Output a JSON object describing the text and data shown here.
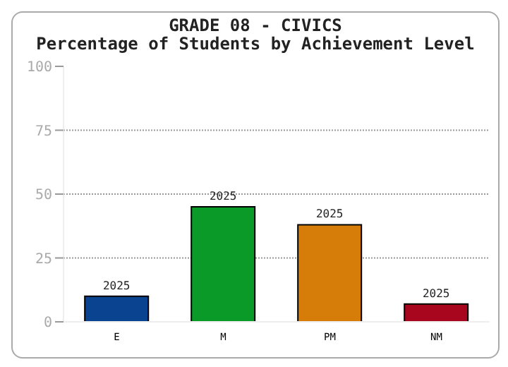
{
  "chart_data": {
    "type": "bar",
    "title": "GRADE 08 - CIVICS",
    "subtitle": "Percentage of Students by Achievement Level",
    "categories": [
      "E",
      "M",
      "PM",
      "NM"
    ],
    "series": [
      {
        "name": "2025",
        "colors": [
          "#0a4490",
          "#0a9a28",
          "#d67c08",
          "#a8061e"
        ],
        "values": [
          10,
          45,
          38,
          7
        ]
      }
    ],
    "ylim": [
      0,
      100
    ],
    "yticks": [
      0,
      25,
      50,
      75,
      100
    ],
    "grid": "y"
  }
}
